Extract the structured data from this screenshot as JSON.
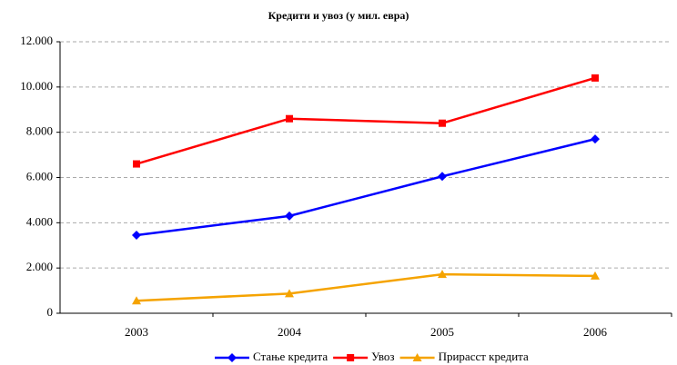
{
  "chart_data": {
    "type": "line",
    "title": "Кредити и увоз (у мил. евра)",
    "categories": [
      "2003",
      "2004",
      "2005",
      "2006"
    ],
    "series": [
      {
        "name": "Стање кредита",
        "color": "#0000ff",
        "marker": "diamond",
        "values": [
          3450,
          4300,
          6050,
          7700
        ]
      },
      {
        "name": "Увоз",
        "color": "#ff0000",
        "marker": "square",
        "values": [
          6600,
          8600,
          8400,
          10400
        ]
      },
      {
        "name": "Прирасст кредита",
        "color": "#f5a300",
        "marker": "triangle",
        "values": [
          550,
          870,
          1720,
          1650
        ]
      }
    ],
    "ylim": [
      0,
      12000
    ],
    "yticks": [
      0,
      {
        "value": 2000,
        "label": "2.000"
      },
      {
        "value": 4000,
        "label": "4.000"
      },
      {
        "value": 6000,
        "label": "6.000"
      },
      {
        "value": 8000,
        "label": "8.000"
      },
      {
        "value": 10000,
        "label": "10.000"
      },
      {
        "value": 12000,
        "label": "12.000"
      }
    ],
    "grid": true,
    "legend": "bottom"
  }
}
